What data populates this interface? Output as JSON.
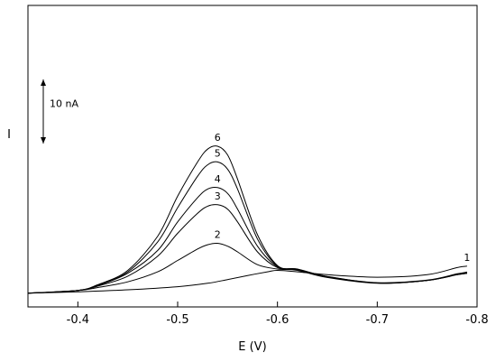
{
  "chart_data": {
    "type": "line",
    "xlabel": "E (V)",
    "ylabel": "I",
    "xlim": [
      -0.35,
      -0.8
    ],
    "ylim": [
      0,
      1
    ],
    "x_ticks": [
      {
        "value": -0.4,
        "label": "-0.4"
      },
      {
        "value": -0.5,
        "label": "-0.5"
      },
      {
        "value": -0.6,
        "label": "-0.6"
      },
      {
        "value": -0.7,
        "label": "-0.7"
      },
      {
        "value": -0.8,
        "label": "-0.8"
      }
    ],
    "scale_bar": {
      "label": "10 nA",
      "span": 0.087
    },
    "grid": false,
    "legend": "none",
    "series_style": {
      "color": "#000000"
    },
    "series": [
      {
        "label": "1",
        "x": [
          -0.35,
          -0.4,
          -0.45,
          -0.5,
          -0.53,
          -0.55,
          -0.57,
          -0.59,
          -0.6,
          -0.62,
          -0.65,
          -0.7,
          -0.75,
          -0.78,
          -0.79
        ],
        "y": [
          0.01,
          0.015,
          0.022,
          0.033,
          0.045,
          0.058,
          0.072,
          0.085,
          0.09,
          0.085,
          0.075,
          0.066,
          0.075,
          0.1,
          0.105
        ]
      },
      {
        "label": "2",
        "x": [
          -0.35,
          -0.4,
          -0.42,
          -0.45,
          -0.48,
          -0.5,
          -0.52,
          -0.53,
          -0.54,
          -0.55,
          -0.56,
          -0.58,
          -0.6,
          -0.62,
          -0.65,
          -0.7,
          -0.75,
          -0.78,
          -0.79
        ],
        "y": [
          0.01,
          0.02,
          0.03,
          0.05,
          0.085,
          0.125,
          0.165,
          0.18,
          0.185,
          0.175,
          0.155,
          0.11,
          0.095,
          0.09,
          0.065,
          0.045,
          0.055,
          0.075,
          0.08
        ]
      },
      {
        "label": "3",
        "x": [
          -0.35,
          -0.4,
          -0.42,
          -0.45,
          -0.48,
          -0.5,
          -0.52,
          -0.53,
          -0.54,
          -0.55,
          -0.56,
          -0.58,
          -0.6,
          -0.62,
          -0.65,
          -0.7,
          -0.75,
          -0.78,
          -0.79
        ],
        "y": [
          0.01,
          0.02,
          0.035,
          0.07,
          0.14,
          0.22,
          0.29,
          0.315,
          0.32,
          0.305,
          0.26,
          0.155,
          0.1,
          0.092,
          0.068,
          0.046,
          0.055,
          0.075,
          0.08
        ]
      },
      {
        "label": "4",
        "x": [
          -0.35,
          -0.4,
          -0.42,
          -0.45,
          -0.48,
          -0.5,
          -0.52,
          -0.53,
          -0.54,
          -0.55,
          -0.56,
          -0.58,
          -0.6,
          -0.62,
          -0.65,
          -0.7,
          -0.75,
          -0.78,
          -0.79
        ],
        "y": [
          0.01,
          0.02,
          0.037,
          0.08,
          0.16,
          0.26,
          0.345,
          0.375,
          0.38,
          0.36,
          0.305,
          0.175,
          0.103,
          0.093,
          0.068,
          0.046,
          0.055,
          0.076,
          0.082
        ]
      },
      {
        "label": "5",
        "x": [
          -0.35,
          -0.4,
          -0.42,
          -0.45,
          -0.48,
          -0.5,
          -0.52,
          -0.53,
          -0.54,
          -0.55,
          -0.56,
          -0.58,
          -0.6,
          -0.62,
          -0.65,
          -0.7,
          -0.75,
          -0.78,
          -0.79
        ],
        "y": [
          0.01,
          0.02,
          0.038,
          0.085,
          0.19,
          0.31,
          0.42,
          0.46,
          0.47,
          0.445,
          0.375,
          0.2,
          0.105,
          0.094,
          0.068,
          0.046,
          0.055,
          0.077,
          0.083
        ]
      },
      {
        "label": "6",
        "x": [
          -0.35,
          -0.4,
          -0.42,
          -0.45,
          -0.48,
          -0.5,
          -0.52,
          -0.53,
          -0.54,
          -0.55,
          -0.56,
          -0.58,
          -0.6,
          -0.62,
          -0.65,
          -0.7,
          -0.75,
          -0.78,
          -0.79
        ],
        "y": [
          0.01,
          0.02,
          0.04,
          0.09,
          0.21,
          0.35,
          0.47,
          0.515,
          0.525,
          0.495,
          0.41,
          0.215,
          0.107,
          0.095,
          0.069,
          0.047,
          0.056,
          0.078,
          0.084
        ]
      }
    ]
  }
}
